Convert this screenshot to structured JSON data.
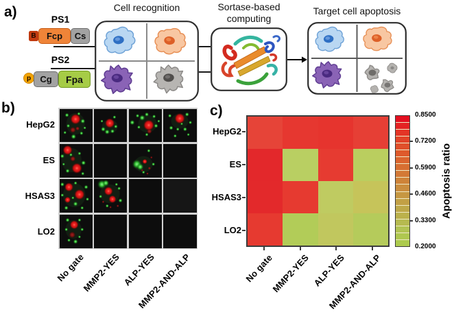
{
  "figure": {
    "panel_a_label": "a)",
    "panel_b_label": "b)",
    "panel_c_label": "c)"
  },
  "panel_a": {
    "probe1": {
      "name": "PS1",
      "cap": "B",
      "seg1": "Fcp",
      "seg2": "Cs"
    },
    "probe2": {
      "name": "PS2",
      "cap": "p",
      "seg1": "Cg",
      "seg2": "Fpa"
    },
    "titles": {
      "recognition": "Cell recognition",
      "computing_line1": "Sortase-based",
      "computing_line2": "computing",
      "apoptosis": "Target cell apoptosis"
    },
    "colors": {
      "cap1_fill": "#c13a10",
      "seg_fcp_fill": "#ef8438",
      "seg_gray_fill": "#a2a2a2",
      "cap2_fill": "#f2a405",
      "seg_fpa_fill": "#a6cc46"
    }
  },
  "panel_b": {
    "rows": [
      "HepG2",
      "ES",
      "HSAS3",
      "LO2"
    ],
    "cols": [
      "No gate",
      "MMP2-YES",
      "ALP-YES",
      "MMP2-AND-ALP"
    ],
    "signal": [
      [
        "apoptotic",
        "apoptotic",
        "apoptotic",
        "apoptotic"
      ],
      [
        "apoptotic",
        "none",
        "apoptotic",
        "none"
      ],
      [
        "apoptotic",
        "apoptotic",
        "none",
        "none"
      ],
      [
        "apoptotic",
        "none",
        "none",
        "none"
      ]
    ]
  },
  "panel_c": {
    "rows": [
      "HepG2",
      "ES",
      "HSAS3",
      "LO2"
    ],
    "cols": [
      "No gate",
      "MMP2-YES",
      "ALP-YES",
      "MMP2-AND-ALP"
    ],
    "cell_colors": [
      [
        "#e64438",
        "#e63730",
        "#e6342e",
        "#e63f35"
      ],
      [
        "#e3282b",
        "#b9cf62",
        "#e63b31",
        "#bace5f"
      ],
      [
        "#e3292b",
        "#e63a30",
        "#bfcb61",
        "#c6c45a"
      ],
      [
        "#e63a30",
        "#b2cc58",
        "#c1c75e",
        "#b5cb5b"
      ]
    ],
    "colorbar": {
      "label": "Apoptosis ratio",
      "ticks": [
        "0.8500",
        "0.7200",
        "0.5900",
        "0.4600",
        "0.3300",
        "0.2000"
      ],
      "segments": 19,
      "anchors": [
        "#e40f20",
        "#e43b27",
        "#dd5f2c",
        "#d08038",
        "#c49a43",
        "#bcae4b",
        "#b2c253",
        "#adcb4e"
      ]
    }
  },
  "chart_data": {
    "type": "heatmap",
    "rows": [
      "HepG2",
      "ES",
      "HSAS3",
      "LO2"
    ],
    "columns": [
      "No gate",
      "MMP2-YES",
      "ALP-YES",
      "MMP2-AND-ALP"
    ],
    "values": [
      [
        0.78,
        0.79,
        0.79,
        0.78
      ],
      [
        0.85,
        0.28,
        0.78,
        0.28
      ],
      [
        0.85,
        0.79,
        0.31,
        0.35
      ],
      [
        0.78,
        0.26,
        0.33,
        0.27
      ]
    ],
    "colorbar_label": "Apoptosis ratio",
    "colorbar_ticks": [
      0.85,
      0.72,
      0.59,
      0.46,
      0.33,
      0.2
    ],
    "scale_range": [
      0.2,
      0.85
    ],
    "legend_position": "right",
    "grid": false
  }
}
